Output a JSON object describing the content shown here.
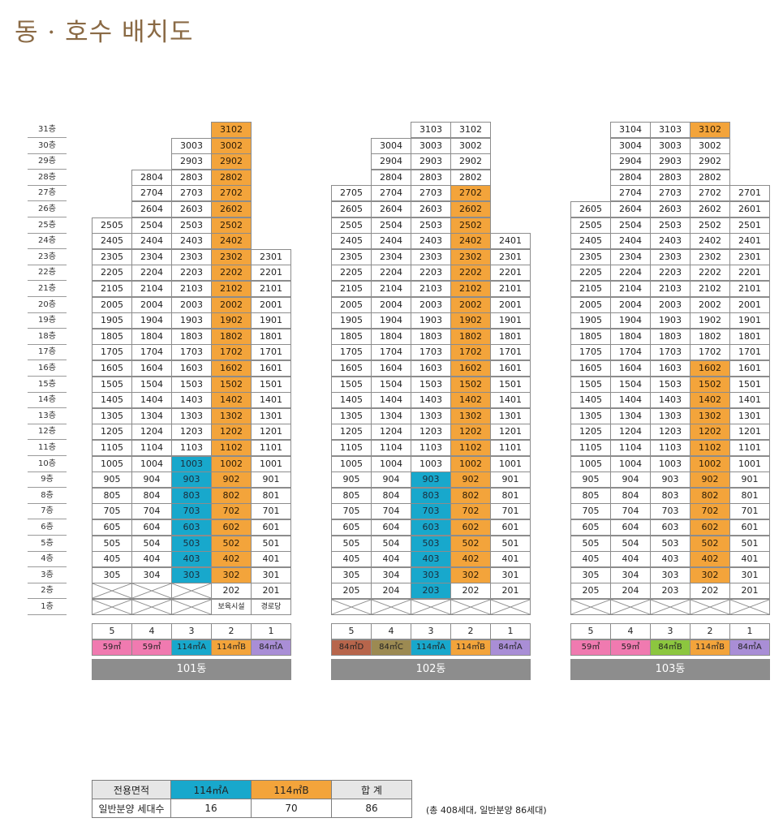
{
  "title": "동 · 호수 배치도",
  "colors": {
    "unit_default": "#ffffff",
    "unit_114A": "#18a8cc",
    "unit_114B": "#f3a43b",
    "type_59": "#f07ab0",
    "type_84A": "#a98ed6",
    "type_84B": "#8cc63f",
    "type_84C": "#9c8a52",
    "type_84D": "#b7654b",
    "type_114A": "#18a8cc",
    "type_114B": "#f3a43b",
    "building_bar": "#8d8d8d"
  },
  "floor_labels": [
    "31층",
    "30층",
    "29층",
    "28층",
    "27층",
    "26층",
    "25층",
    "24층",
    "23층",
    "22층",
    "21층",
    "20층",
    "19층",
    "18층",
    "17층",
    "16층",
    "15층",
    "14층",
    "13층",
    "12층",
    "11층",
    "10층",
    "9층",
    "8층",
    "7층",
    "6층",
    "5층",
    "4층",
    "3층",
    "2층",
    "1층"
  ],
  "buildings": [
    {
      "name": "101동",
      "lines": [
        "5",
        "4",
        "3",
        "2",
        "1"
      ],
      "types": [
        {
          "label": "59㎡",
          "color": "#f07ab0"
        },
        {
          "label": "59㎡",
          "color": "#f07ab0"
        },
        {
          "label": "114㎡A",
          "color": "#18a8cc"
        },
        {
          "label": "114㎡B",
          "color": "#f3a43b"
        },
        {
          "label": "84㎡A",
          "color": "#a98ed6"
        }
      ],
      "columns": [
        {
          "line": "5",
          "top": 25,
          "bottom": 3,
          "highlight_top": 0,
          "highlight_bottom": 0,
          "highlight": "t1",
          "floor2": "x",
          "floor1": "x"
        },
        {
          "line": "4",
          "top": 28,
          "bottom": 3,
          "highlight_top": 0,
          "highlight_bottom": 0,
          "highlight": "t1",
          "floor2": "x",
          "floor1": "x"
        },
        {
          "line": "3",
          "top": 30,
          "bottom": 3,
          "highlight_top": 10,
          "highlight_bottom": 3,
          "highlight": "t2",
          "floor2": "x",
          "floor1": "x"
        },
        {
          "line": "2",
          "top": 31,
          "bottom": 3,
          "highlight_top": 31,
          "highlight_bottom": 3,
          "highlight": "t3",
          "floor2": "202",
          "floor1": "보육시설"
        },
        {
          "line": "1",
          "top": 23,
          "bottom": 3,
          "highlight_top": 0,
          "highlight_bottom": 0,
          "highlight": "t1",
          "floor2": "201",
          "floor1": "경로당"
        }
      ]
    },
    {
      "name": "102동",
      "lines": [
        "5",
        "4",
        "3",
        "2",
        "1"
      ],
      "types": [
        {
          "label": "84㎡D",
          "color": "#b7654b"
        },
        {
          "label": "84㎡C",
          "color": "#9c8a52"
        },
        {
          "label": "114㎡A",
          "color": "#18a8cc"
        },
        {
          "label": "114㎡B",
          "color": "#f3a43b"
        },
        {
          "label": "84㎡A",
          "color": "#a98ed6"
        }
      ],
      "columns": [
        {
          "line": "5",
          "top": 27,
          "bottom": 3,
          "highlight_top": 0,
          "highlight_bottom": 0,
          "highlight": "t1",
          "floor2": "205",
          "floor1": "x"
        },
        {
          "line": "4",
          "top": 30,
          "bottom": 3,
          "highlight_top": 0,
          "highlight_bottom": 0,
          "highlight": "t1",
          "floor2": "204",
          "floor1": "x"
        },
        {
          "line": "3",
          "top": 31,
          "bottom": 3,
          "highlight_top": 9,
          "highlight_bottom": 2,
          "highlight": "t2",
          "floor2": "203",
          "floor1": "x"
        },
        {
          "line": "2",
          "top": 31,
          "bottom": 3,
          "highlight_top": 27,
          "highlight_bottom": 3,
          "highlight": "t3",
          "floor2": "202",
          "floor1": "x"
        },
        {
          "line": "1",
          "top": 24,
          "bottom": 3,
          "highlight_top": 0,
          "highlight_bottom": 0,
          "highlight": "t1",
          "floor2": "201",
          "floor1": "x"
        }
      ]
    },
    {
      "name": "103동",
      "lines": [
        "5",
        "4",
        "3",
        "2",
        "1"
      ],
      "types": [
        {
          "label": "59㎡",
          "color": "#f07ab0"
        },
        {
          "label": "59㎡",
          "color": "#f07ab0"
        },
        {
          "label": "84㎡B",
          "color": "#8cc63f"
        },
        {
          "label": "114㎡B",
          "color": "#f3a43b"
        },
        {
          "label": "84㎡A",
          "color": "#a98ed6"
        }
      ],
      "columns": [
        {
          "line": "5",
          "top": 26,
          "bottom": 3,
          "highlight_top": 0,
          "highlight_bottom": 0,
          "highlight": "t1",
          "floor2": "205",
          "floor1": "x"
        },
        {
          "line": "4",
          "top": 31,
          "bottom": 3,
          "highlight_top": 0,
          "highlight_bottom": 0,
          "highlight": "t1",
          "floor2": "204",
          "floor1": "x"
        },
        {
          "line": "3",
          "top": 31,
          "bottom": 3,
          "highlight_top": 0,
          "highlight_bottom": 0,
          "highlight": "t1",
          "floor2": "203",
          "floor1": "x"
        },
        {
          "line": "2",
          "top": 31,
          "bottom": 3,
          "highlight_top": 31,
          "highlight_top_alt": 16,
          "highlight_bottom": 3,
          "highlight": "t3",
          "floor2": "202",
          "floor1": "x"
        },
        {
          "line": "1",
          "top": 27,
          "bottom": 3,
          "highlight_top": 0,
          "highlight_bottom": 0,
          "highlight": "t1",
          "floor2": "201",
          "floor1": "x"
        }
      ]
    }
  ],
  "summary": {
    "header_label": "전용면적",
    "type_a": "114㎡A",
    "type_b": "114㎡B",
    "total_label": "합 계",
    "row_label": "일반분양 세대수",
    "count_a": "16",
    "count_b": "70",
    "count_total": "86"
  },
  "note": "(총 408세대, 일반분양 86세대)"
}
